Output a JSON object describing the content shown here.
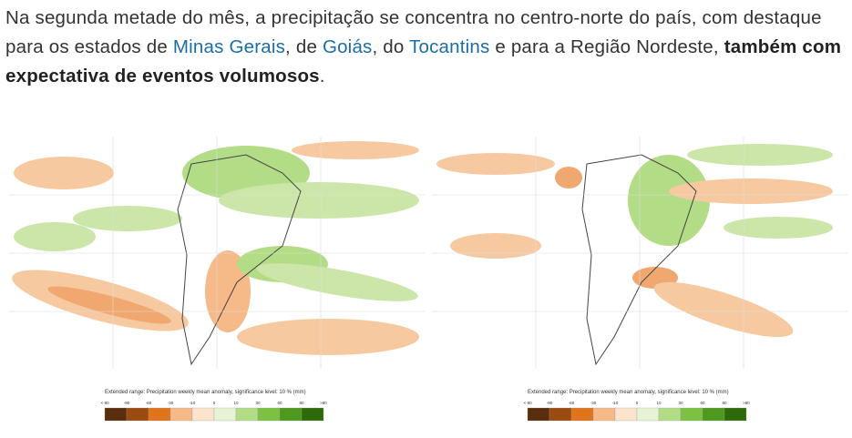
{
  "paragraph": {
    "text_1": "Na segunda metade do mês, a precipitação se concentra no centro-norte do país, com destaque para os estados de ",
    "link_1": "Minas Gerais",
    "text_2": ", de ",
    "link_2": "Goiás",
    "text_3": ", do ",
    "link_3": "Tocantins",
    "text_4": " e para a Região Nordeste, ",
    "bold": "também com expectativa de eventos volumosos",
    "text_5": "."
  },
  "figures": [
    {
      "legend_title": "Extended range: Precipitation weekly mean anomaly, significance level: 10 % (mm)",
      "legend_labels": [
        "<-80",
        "-80",
        "-60",
        "-30",
        "-10",
        "0",
        "10",
        "30",
        "60",
        "80",
        ">80"
      ]
    },
    {
      "legend_title": "Extended range: Precipitation weekly mean anomaly, significance level: 10 % (mm)",
      "legend_labels": [
        "<-80",
        "-80",
        "-60",
        "-30",
        "-10",
        "0",
        "10",
        "30",
        "60",
        "80",
        ">80"
      ]
    }
  ]
}
